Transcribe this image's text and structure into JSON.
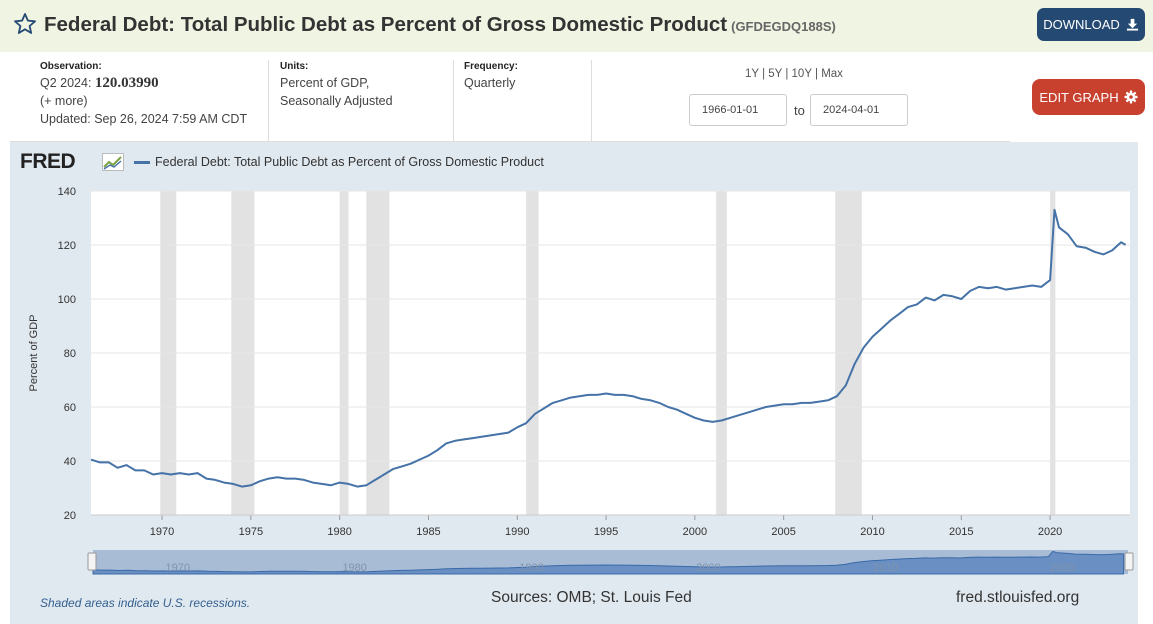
{
  "header": {
    "title": "Federal Debt: Total Public Debt as Percent of Gross Domestic Product",
    "series_id": "(GFDEGDQ188S)",
    "download_label": "DOWNLOAD",
    "background": "#f0f4e2",
    "download_color": "#244a73"
  },
  "observation": {
    "label": "Observation:",
    "period": "Q2 2024:",
    "value": "120.03990",
    "more": "(+ more)",
    "updated": "Updated: Sep 26, 2024 7:59 AM CDT"
  },
  "units": {
    "label": "Units:",
    "line1": "Percent of GDP,",
    "line2": "Seasonally Adjusted"
  },
  "frequency": {
    "label": "Frequency:",
    "value": "Quarterly"
  },
  "range_links": [
    "1Y",
    "5Y",
    "10Y",
    "Max"
  ],
  "range_separator": "|",
  "date_range": {
    "start": "1966-01-01",
    "to_label": "to",
    "end": "2024-04-01"
  },
  "edit_graph_label": "EDIT GRAPH",
  "edit_color": "#c8412f",
  "legend": {
    "logo": "FRED",
    "series_label": "Federal Debt: Total Public Debt as Percent of Gross Domestic Product"
  },
  "footer": {
    "recession_note": "Shaded areas indicate U.S. recessions.",
    "sources": "Sources: OMB; St. Louis Fed",
    "site": "fred.stlouisfed.org"
  },
  "chart_data": {
    "type": "line",
    "title": "",
    "xlabel": "",
    "ylabel": "Percent of GDP",
    "xlim": [
      1966,
      2024.5
    ],
    "ylim": [
      20,
      140
    ],
    "y_ticks": [
      20,
      40,
      60,
      80,
      100,
      120,
      140
    ],
    "x_ticks": [
      1970,
      1975,
      1980,
      1985,
      1990,
      1995,
      2000,
      2005,
      2010,
      2015,
      2020
    ],
    "grid": true,
    "legend_position": "top-left",
    "line_color": "#4572a7",
    "recession_color": "#e2e2e2",
    "recessions": [
      [
        1969.9,
        1970.8
      ],
      [
        1973.9,
        1975.2
      ],
      [
        1980.0,
        1980.5
      ],
      [
        1981.5,
        1982.8
      ],
      [
        1990.5,
        1991.2
      ],
      [
        2001.2,
        2001.8
      ],
      [
        2007.9,
        2009.4
      ],
      [
        2020.0,
        2020.3
      ]
    ],
    "series": [
      {
        "name": "Federal Debt: Total Public Debt as Percent of Gross Domestic Product",
        "x": [
          1966.0,
          1966.5,
          1967.0,
          1967.5,
          1968.0,
          1968.5,
          1969.0,
          1969.5,
          1970.0,
          1970.5,
          1971.0,
          1971.5,
          1972.0,
          1972.5,
          1973.0,
          1973.5,
          1974.0,
          1974.5,
          1975.0,
          1975.5,
          1976.0,
          1976.5,
          1977.0,
          1977.5,
          1978.0,
          1978.5,
          1979.0,
          1979.5,
          1980.0,
          1980.5,
          1981.0,
          1981.5,
          1982.0,
          1982.5,
          1983.0,
          1983.5,
          1984.0,
          1984.5,
          1985.0,
          1985.5,
          1986.0,
          1986.5,
          1987.0,
          1987.5,
          1988.0,
          1988.5,
          1989.0,
          1989.5,
          1990.0,
          1990.5,
          1991.0,
          1991.5,
          1992.0,
          1992.5,
          1993.0,
          1993.5,
          1994.0,
          1994.5,
          1995.0,
          1995.5,
          1996.0,
          1996.5,
          1997.0,
          1997.5,
          1998.0,
          1998.5,
          1999.0,
          1999.5,
          2000.0,
          2000.5,
          2001.0,
          2001.5,
          2002.0,
          2002.5,
          2003.0,
          2003.5,
          2004.0,
          2004.5,
          2005.0,
          2005.5,
          2006.0,
          2006.5,
          2007.0,
          2007.5,
          2008.0,
          2008.5,
          2009.0,
          2009.5,
          2010.0,
          2010.5,
          2011.0,
          2011.5,
          2012.0,
          2012.5,
          2013.0,
          2013.5,
          2014.0,
          2014.5,
          2015.0,
          2015.5,
          2016.0,
          2016.5,
          2017.0,
          2017.5,
          2018.0,
          2018.5,
          2019.0,
          2019.5,
          2020.0,
          2020.25,
          2020.5,
          2021.0,
          2021.5,
          2022.0,
          2022.5,
          2023.0,
          2023.5,
          2024.0,
          2024.25
        ],
        "values": [
          40.5,
          39.5,
          39.5,
          37.5,
          38.5,
          36.5,
          36.5,
          35.0,
          35.5,
          35.0,
          35.5,
          35.0,
          35.5,
          33.5,
          33.0,
          32.0,
          31.5,
          30.5,
          31.0,
          32.5,
          33.5,
          34.0,
          33.5,
          33.5,
          33.0,
          32.0,
          31.5,
          31.0,
          32.0,
          31.5,
          30.5,
          31.0,
          33.0,
          35.0,
          37.0,
          38.0,
          39.0,
          40.5,
          42.0,
          44.0,
          46.5,
          47.5,
          48.0,
          48.5,
          49.0,
          49.5,
          50.0,
          50.5,
          52.5,
          54.0,
          57.5,
          59.5,
          61.5,
          62.5,
          63.5,
          64.0,
          64.5,
          64.5,
          65.0,
          64.5,
          64.5,
          64.0,
          63.0,
          62.5,
          61.5,
          60.0,
          59.0,
          57.5,
          56.0,
          55.0,
          54.5,
          55.0,
          56.0,
          57.0,
          58.0,
          59.0,
          60.0,
          60.5,
          61.0,
          61.0,
          61.5,
          61.5,
          62.0,
          62.5,
          64.0,
          68.0,
          76.0,
          82.0,
          86.0,
          89.0,
          92.0,
          94.5,
          97.0,
          98.0,
          100.5,
          99.5,
          101.5,
          101.0,
          100.0,
          103.0,
          104.5,
          104.0,
          104.5,
          103.5,
          104.0,
          104.5,
          105.0,
          104.5,
          107.0,
          133.0,
          126.5,
          124.0,
          119.5,
          119.0,
          117.5,
          116.5,
          118.0,
          121.0,
          120.04
        ]
      }
    ]
  }
}
